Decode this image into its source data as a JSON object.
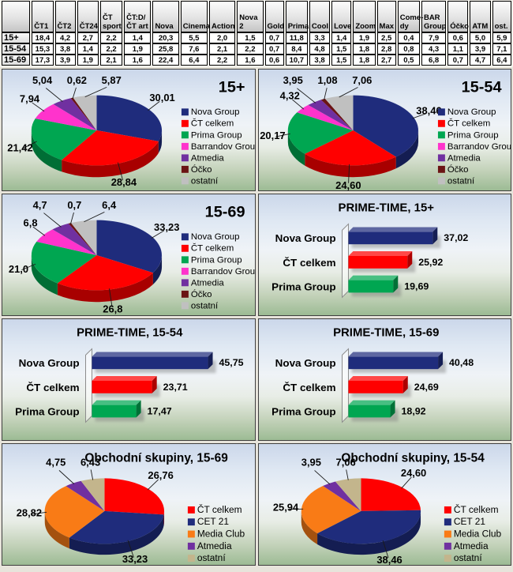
{
  "table": {
    "corner_label": "",
    "columns": [
      "ČT1",
      "ČT2",
      "ČT24",
      "ČT\nsport",
      "ČT:D/\nČT art",
      "Nova",
      "Cinema",
      "Action",
      "Nova 2",
      "Gold",
      "Prima",
      "Cool",
      "Love",
      "Zoom",
      "Max",
      "Come-\ndy",
      "BAR\nGroup",
      "Óčko",
      "ATM",
      "ost."
    ],
    "rows": [
      {
        "label": "15+",
        "values": [
          "18,4",
          "4,2",
          "2,7",
          "2,2",
          "1,4",
          "20,3",
          "5,5",
          "2,0",
          "1,5",
          "0,7",
          "11,8",
          "3,3",
          "1,4",
          "1,9",
          "2,5",
          "0,4",
          "7,9",
          "0,6",
          "5,0",
          "5,9"
        ]
      },
      {
        "label": "15-54",
        "values": [
          "15,3",
          "3,8",
          "1,4",
          "2,2",
          "1,9",
          "25,8",
          "7,6",
          "2,1",
          "2,2",
          "0,7",
          "8,4",
          "4,8",
          "1,5",
          "1,8",
          "2,8",
          "0,8",
          "4,3",
          "1,1",
          "3,9",
          "7,1"
        ]
      },
      {
        "label": "15-69",
        "values": [
          "17,3",
          "3,9",
          "1,9",
          "2,1",
          "1,6",
          "22,4",
          "6,4",
          "2,2",
          "1,6",
          "0,6",
          "10,7",
          "3,8",
          "1,5",
          "1,8",
          "2,7",
          "0,5",
          "6,8",
          "0,7",
          "4,7",
          "6,4"
        ]
      }
    ]
  },
  "colors": {
    "navy": "#1F2C7C",
    "red": "#FF0000",
    "green": "#00A651",
    "magenta": "#FF33CC",
    "purple": "#7030A0",
    "maroon": "#6B1414",
    "silver": "#C0C0C0",
    "orange": "#F97B16",
    "tan": "#C3B58C"
  },
  "chart_data": [
    {
      "id": "pie-15plus",
      "type": "pie",
      "title": "15+",
      "title_align": "right",
      "series": [
        {
          "name": "Nova Group",
          "value": 30.01,
          "label": "30,01",
          "color": "#1F2C7C"
        },
        {
          "name": "ČT celkem",
          "value": 28.84,
          "label": "28,84",
          "color": "#FF0000"
        },
        {
          "name": "Prima Group",
          "value": 21.42,
          "label": "21,42",
          "color": "#00A651"
        },
        {
          "name": "Barrandov Group",
          "value": 7.94,
          "label": "7,94",
          "color": "#FF33CC"
        },
        {
          "name": "Atmedia",
          "value": 5.04,
          "label": "5,04",
          "color": "#7030A0"
        },
        {
          "name": "Óčko",
          "value": 0.62,
          "label": "0,62",
          "color": "#6B1414"
        },
        {
          "name": "ostatní",
          "value": 5.87,
          "label": "5,87",
          "color": "#C0C0C0"
        }
      ]
    },
    {
      "id": "pie-1554",
      "type": "pie",
      "title": "15-54",
      "title_align": "right",
      "series": [
        {
          "name": "Nova Group",
          "value": 38.46,
          "label": "38,46",
          "color": "#1F2C7C"
        },
        {
          "name": "ČT celkem",
          "value": 24.6,
          "label": "24,60",
          "color": "#FF0000"
        },
        {
          "name": "Prima Group",
          "value": 20.17,
          "label": "20,17",
          "color": "#00A651"
        },
        {
          "name": "Barrandov Group",
          "value": 4.32,
          "label": "4,32",
          "color": "#FF33CC"
        },
        {
          "name": "Atmedia",
          "value": 3.95,
          "label": "3,95",
          "color": "#7030A0"
        },
        {
          "name": "Óčko",
          "value": 1.08,
          "label": "1,08",
          "color": "#6B1414"
        },
        {
          "name": "ostatní",
          "value": 7.06,
          "label": "7,06",
          "color": "#C0C0C0"
        }
      ]
    },
    {
      "id": "pie-1569",
      "type": "pie",
      "title": "15-69",
      "title_align": "right",
      "series": [
        {
          "name": "Nova Group",
          "value": 33.23,
          "label": "33,23",
          "color": "#1F2C7C"
        },
        {
          "name": "ČT celkem",
          "value": 26.8,
          "label": "26,8",
          "color": "#FF0000"
        },
        {
          "name": "Prima Group",
          "value": 21.0,
          "label": "21,0",
          "color": "#00A651"
        },
        {
          "name": "Barrandov Group",
          "value": 6.8,
          "label": "6,8",
          "color": "#FF33CC"
        },
        {
          "name": "Atmedia",
          "value": 4.7,
          "label": "4,7",
          "color": "#7030A0"
        },
        {
          "name": "Óčko",
          "value": 0.7,
          "label": "0,7",
          "color": "#6B1414"
        },
        {
          "name": "ostatní",
          "value": 6.4,
          "label": "6,4",
          "color": "#C0C0C0"
        }
      ]
    },
    {
      "id": "bar-pt-15plus",
      "type": "bar",
      "title": "PRIME-TIME,  15+",
      "series": [
        {
          "name": "Nova Group",
          "value": 37.02,
          "label": "37,02",
          "color": "#1F2C7C"
        },
        {
          "name": "ČT celkem",
          "value": 25.92,
          "label": "25,92",
          "color": "#FF0000"
        },
        {
          "name": "Prima Group",
          "value": 19.69,
          "label": "19,69",
          "color": "#00A651"
        }
      ]
    },
    {
      "id": "bar-pt-1554",
      "type": "bar",
      "title": "PRIME-TIME,  15-54",
      "series": [
        {
          "name": "Nova Group",
          "value": 45.75,
          "label": "45,75",
          "color": "#1F2C7C"
        },
        {
          "name": "ČT celkem",
          "value": 23.71,
          "label": "23,71",
          "color": "#FF0000"
        },
        {
          "name": "Prima Group",
          "value": 17.47,
          "label": "17,47",
          "color": "#00A651"
        }
      ]
    },
    {
      "id": "bar-pt-1569",
      "type": "bar",
      "title": "PRIME-TIME,  15-69",
      "series": [
        {
          "name": "Nova Group",
          "value": 40.48,
          "label": "40,48",
          "color": "#1F2C7C"
        },
        {
          "name": "ČT celkem",
          "value": 24.69,
          "label": "24,69",
          "color": "#FF0000"
        },
        {
          "name": "Prima Group",
          "value": 18.92,
          "label": "18,92",
          "color": "#00A651"
        }
      ]
    },
    {
      "id": "pie-obchodni-1569",
      "type": "pie",
      "title": "Obchodní skupiny, 15-69",
      "title_align": "center",
      "series": [
        {
          "name": "ČT celkem",
          "value": 26.76,
          "label": "26,76",
          "color": "#FF0000"
        },
        {
          "name": "CET 21",
          "value": 33.23,
          "label": "33,23",
          "color": "#1F2C7C"
        },
        {
          "name": "Media Club",
          "value": 28.82,
          "label": "28,82",
          "color": "#F97B16"
        },
        {
          "name": "Atmedia",
          "value": 4.75,
          "label": "4,75",
          "color": "#7030A0"
        },
        {
          "name": "ostatní",
          "value": 6.43,
          "label": "6,43",
          "color": "#C3B58C"
        }
      ]
    },
    {
      "id": "pie-obchodni-1554",
      "type": "pie",
      "title": "Obchodní skupiny, 15-54",
      "title_align": "center",
      "series": [
        {
          "name": "ČT celkem",
          "value": 24.6,
          "label": "24,60",
          "color": "#FF0000"
        },
        {
          "name": "CET 21",
          "value": 38.46,
          "label": "38,46",
          "color": "#1F2C7C"
        },
        {
          "name": "Media Club",
          "value": 25.94,
          "label": "25,94",
          "color": "#F97B16"
        },
        {
          "name": "Atmedia",
          "value": 3.95,
          "label": "3,95",
          "color": "#7030A0"
        },
        {
          "name": "ostatní",
          "value": 7.06,
          "label": "7,06",
          "color": "#C3B58C"
        }
      ]
    }
  ]
}
